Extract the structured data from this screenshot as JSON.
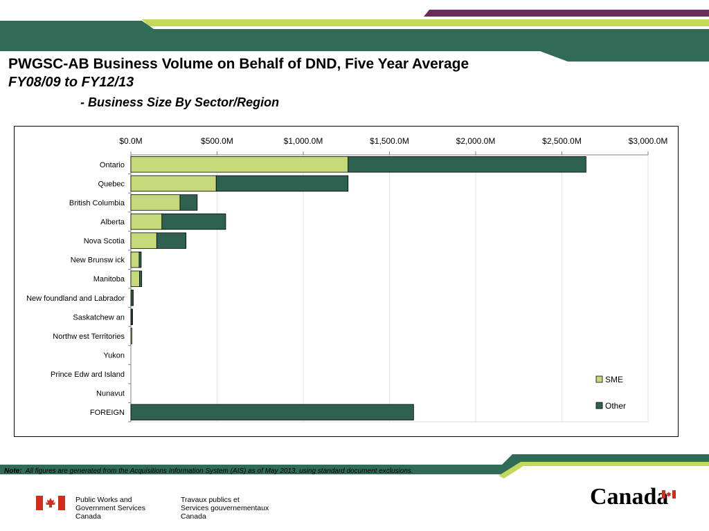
{
  "header": {
    "title_line1": "PWGSC-AB Business Volume on Behalf of DND, Five Year Average",
    "title_line2": "FY08/09 to FY12/13",
    "title_line3": "- Business Size By Sector/Region"
  },
  "colors": {
    "brand_dark_green": "#2f6b57",
    "brand_lime": "#c3d95d",
    "brand_purple": "#6b2c5b",
    "sme_fill": "#c3d97a",
    "other_fill": "#2e6150",
    "flag_red": "#d52b1e"
  },
  "chart_data": {
    "type": "bar",
    "orientation": "horizontal",
    "stacked": true,
    "categories": [
      "Ontario",
      "Quebec",
      "British Columbia",
      "Alberta",
      "Nova Scotia",
      "New  Brunsw ick",
      "Manitoba",
      "New foundland and Labrador",
      "Saskatchew an",
      "Northw est Territories",
      "Yukon",
      "Prince Edw ard Island",
      "Nunavut",
      "FOREIGN"
    ],
    "series": [
      {
        "name": "SME",
        "color": "#c3d97a",
        "values": [
          1260,
          495,
          285,
          180,
          150,
          48,
          50,
          5,
          4,
          1,
          0,
          0,
          0,
          0
        ]
      },
      {
        "name": "Other",
        "color": "#2e6150",
        "values": [
          1380,
          765,
          100,
          370,
          170,
          12,
          13,
          9,
          4,
          0,
          0,
          0,
          0,
          1640
        ]
      }
    ],
    "x_ticks": [
      "$0.0M",
      "$500.0M",
      "$1,000.0M",
      "$1,500.0M",
      "$2,000.0M",
      "$2,500.0M",
      "$3,000.0M"
    ],
    "xlim": [
      0,
      3000
    ],
    "x_axis_position": "top",
    "grid": true,
    "legend_position": "right"
  },
  "footer": {
    "note_label": "Note:",
    "note_text": "All figures are generated from the Acquisitions Information System (AIS) as of May 2013, using standard document exclusions.",
    "dept_en": "Public Works and\nGovernment Services\nCanada",
    "dept_fr": "Travaux publics et\nServices gouvernementaux\nCanada",
    "wordmark": "Canada"
  }
}
